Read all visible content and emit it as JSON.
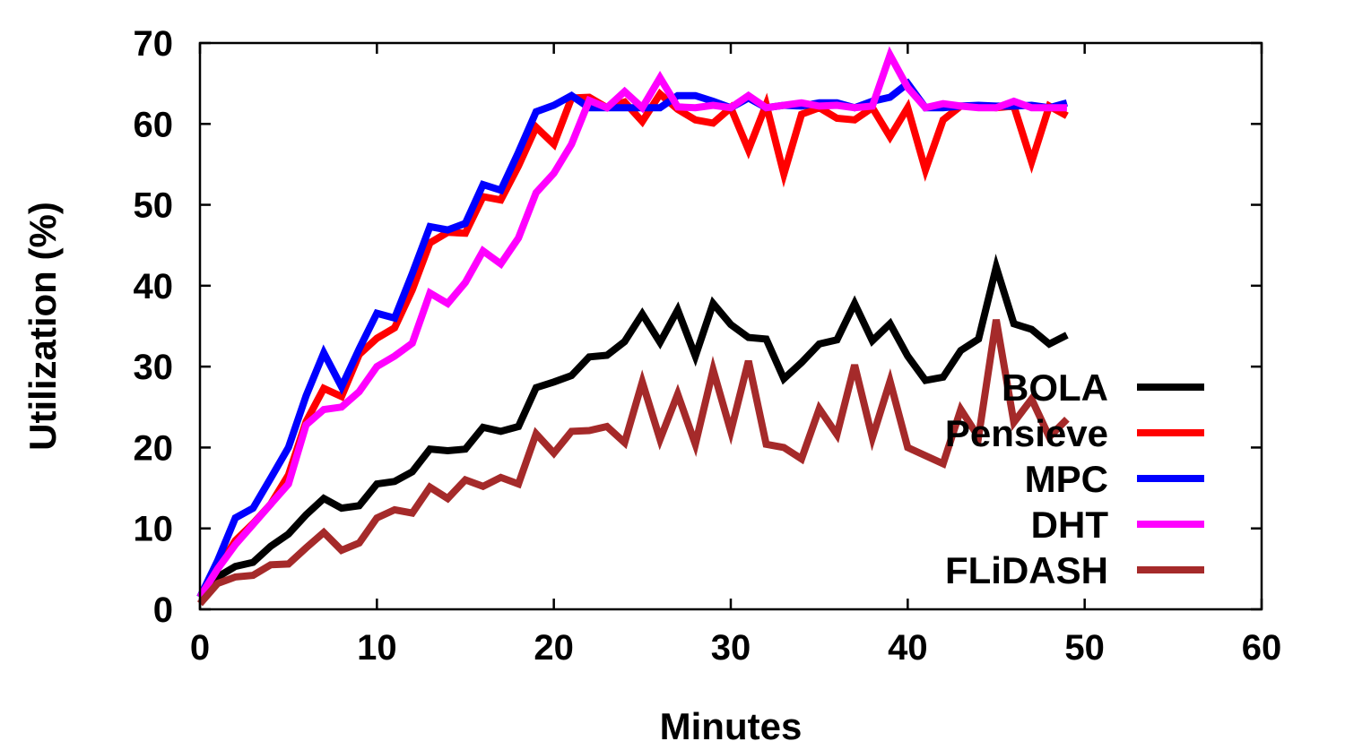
{
  "chart_data": {
    "type": "line",
    "xlabel": "Minutes",
    "ylabel": "Utilization (%)",
    "xlim": [
      0,
      60
    ],
    "ylim": [
      0,
      70
    ],
    "xticks": [
      "0",
      "10",
      "20",
      "30",
      "40",
      "50",
      "60"
    ],
    "yticks": [
      "0",
      "10",
      "20",
      "30",
      "40",
      "50",
      "60",
      "70"
    ],
    "grid": false,
    "legend_position": "bottom-right",
    "x": [
      0,
      1,
      2,
      3,
      4,
      5,
      6,
      7,
      8,
      9,
      10,
      11,
      12,
      13,
      14,
      15,
      16,
      17,
      18,
      19,
      20,
      21,
      22,
      23,
      24,
      25,
      26,
      27,
      28,
      29,
      30,
      31,
      32,
      33,
      34,
      35,
      36,
      37,
      38,
      39,
      40,
      41,
      42,
      43,
      44,
      45,
      46,
      47,
      48,
      49
    ],
    "series": [
      {
        "name": "BOLA",
        "color": "#000000",
        "values": [
          1.5,
          4,
          5.3,
          5.8,
          7.8,
          9.3,
          11.7,
          13.7,
          12.5,
          12.8,
          15.5,
          15.8,
          17,
          19.8,
          19.6,
          19.8,
          22.5,
          22,
          22.6,
          27.4,
          28.1,
          28.9,
          31.2,
          31.4,
          33.1,
          36.5,
          33,
          37,
          31.3,
          37.8,
          35.2,
          33.6,
          33.4,
          28.5,
          30.5,
          32.8,
          33.3,
          37.8,
          33.2,
          35.3,
          31.3,
          28.3,
          28.7,
          32,
          33.4,
          42.3,
          35.3,
          34.6,
          32.8,
          33.9
        ]
      },
      {
        "name": "Pensieve",
        "color": "#ff0000",
        "values": [
          1.5,
          5,
          8.5,
          10.6,
          13,
          16.6,
          23.2,
          27.3,
          26.3,
          31.5,
          33.5,
          34.8,
          39.5,
          45.3,
          46.6,
          46.5,
          51,
          50.6,
          54.8,
          59.6,
          57.5,
          63.2,
          63.3,
          62,
          62.7,
          60.3,
          63.7,
          61.8,
          60.5,
          60.1,
          62,
          56.8,
          62.4,
          53.8,
          61.2,
          62,
          60.7,
          60.5,
          62,
          58.4,
          62,
          54.3,
          60.5,
          62.2,
          62.2,
          62,
          62.2,
          55.3,
          62.2,
          61
        ]
      },
      {
        "name": "MPC",
        "color": "#0000ff",
        "values": [
          1.5,
          6,
          11.3,
          12.5,
          16.2,
          20,
          26.4,
          31.7,
          27.5,
          32.2,
          36.6,
          36,
          41.5,
          47.3,
          46.9,
          47.7,
          52.5,
          51.8,
          56.5,
          61.5,
          62.3,
          63.5,
          62,
          62,
          62,
          62,
          62,
          63.5,
          63.5,
          62.8,
          62,
          63.2,
          62,
          62.3,
          62.2,
          62.6,
          62.6,
          62,
          62.8,
          63.3,
          65,
          62,
          62,
          62.2,
          62.3,
          62.2,
          62.2,
          62.3,
          62,
          62.6
        ]
      },
      {
        "name": "DHT",
        "color": "#ff00ff",
        "values": [
          1.5,
          5,
          8,
          10.5,
          13,
          15.5,
          22.8,
          24.7,
          25,
          26.9,
          30,
          31.3,
          32.9,
          39.1,
          37.8,
          40.4,
          44.3,
          42.7,
          45.9,
          51.5,
          53.9,
          57.5,
          62.9,
          62,
          64,
          62,
          65.7,
          62.1,
          62,
          62.3,
          62,
          63.5,
          62,
          62.3,
          62.6,
          62.2,
          62.3,
          62,
          62.2,
          68.5,
          64.5,
          62,
          62.5,
          62.2,
          62,
          62,
          62.8,
          62,
          62,
          62
        ]
      },
      {
        "name": "FLiDASH",
        "color": "#a52a2a",
        "values": [
          0.7,
          3.2,
          4,
          4.2,
          5.5,
          5.6,
          7.6,
          9.5,
          7.3,
          8.2,
          11.3,
          12.3,
          11.9,
          15.1,
          13.7,
          16,
          15.2,
          16.3,
          15.5,
          21.7,
          19.3,
          22,
          22.1,
          22.6,
          20.6,
          28.1,
          21,
          26.6,
          20.4,
          29.6,
          22,
          30.7,
          20.4,
          20,
          18.6,
          24.8,
          21.6,
          30.2,
          21.2,
          28.2,
          20,
          19,
          18,
          24.7,
          21.3,
          35.8,
          23.1,
          26,
          21.3,
          23.5
        ]
      }
    ]
  }
}
